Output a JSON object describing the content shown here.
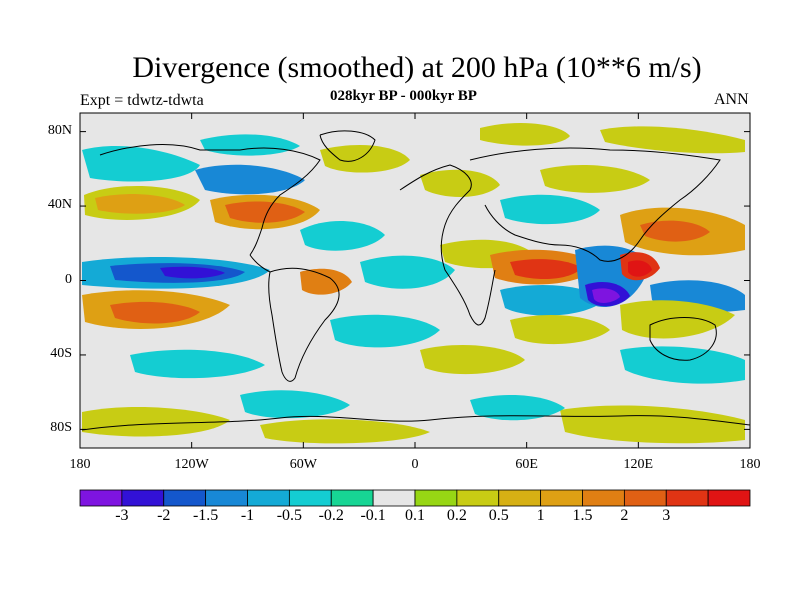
{
  "title": "Divergence (smoothed) at 200 hPa (10**6 m/s)",
  "experiment": "Expt = tdwtz-tdwta",
  "subtitle": "028kyr BP - 000kyr BP",
  "season": "ANN",
  "map": {
    "projection": "cylindrical-equidistant",
    "lon_range": [
      -180,
      180
    ],
    "lat_range": [
      -90,
      90
    ],
    "x_tick_labels": [
      {
        "lon": -180,
        "label": "180"
      },
      {
        "lon": -120,
        "label": "120W"
      },
      {
        "lon": -60,
        "label": "60W"
      },
      {
        "lon": 0,
        "label": "0"
      },
      {
        "lon": 60,
        "label": "60E"
      },
      {
        "lon": 120,
        "label": "120E"
      },
      {
        "lon": 180,
        "label": "180"
      }
    ],
    "y_tick_labels": [
      {
        "lat": 80,
        "label": "80N"
      },
      {
        "lat": 40,
        "label": "40N"
      },
      {
        "lat": 0,
        "label": "0"
      },
      {
        "lat": -40,
        "label": "40S"
      },
      {
        "lat": -80,
        "label": "80S"
      }
    ],
    "background_color": "#e6e6e6"
  },
  "colorbar": {
    "colors": [
      "#7e14e0",
      "#3211d6",
      "#1457cc",
      "#1888d6",
      "#14aad6",
      "#14cdd2",
      "#17d594",
      "#e6e6e6",
      "#97d614",
      "#c8cc14",
      "#d6b014",
      "#dea014",
      "#e07f13",
      "#e06014",
      "#e03414",
      "#e01414"
    ],
    "labels": [
      "-3",
      "-2",
      "-1.5",
      "-1",
      "-0.5",
      "-0.2",
      "-0.1",
      "0.1",
      "0.2",
      "0.5",
      "1",
      "1.5",
      "2",
      "3"
    ]
  },
  "chart_data": {
    "type": "contour-map",
    "title": "Divergence (smoothed) at 200 hPa (10**6 m/s)",
    "variable": "Divergence (smoothed)",
    "level": "200 hPa",
    "units": "10**6 m/s",
    "difference": "028kyr BP - 000kyr BP",
    "season": "ANN",
    "experiment": "tdwtz-tdwta",
    "levels": [
      -3,
      -2,
      -1.5,
      -1,
      -0.5,
      -0.2,
      -0.1,
      0.1,
      0.2,
      0.5,
      1,
      1.5,
      2,
      3
    ],
    "features": [
      {
        "name": "equatorial Pacific convergence band",
        "lon": [
          -170,
          -90
        ],
        "lat": [
          -6,
          8
        ],
        "value": -2
      },
      {
        "name": "western Pacific warm pool minimum",
        "lon": [
          95,
          115
        ],
        "lat": [
          -12,
          -2
        ],
        "value": -3
      },
      {
        "name": "maritime continent maximum",
        "lon": [
          105,
          125
        ],
        "lat": [
          0,
          8
        ],
        "value": 3
      },
      {
        "name": "northwestern Pacific high divergence",
        "lon": [
          110,
          175
        ],
        "lat": [
          10,
          30
        ],
        "value": 1.5
      },
      {
        "name": "Arabian Sea / Indian Ocean high divergence",
        "lon": [
          45,
          80
        ],
        "lat": [
          -5,
          10
        ],
        "value": 1.5
      },
      {
        "name": "central Indian Ocean convergence",
        "lon": [
          60,
          100
        ],
        "lat": [
          -20,
          -8
        ],
        "value": -0.5
      },
      {
        "name": "North America high divergence",
        "lon": [
          -115,
          -75
        ],
        "lat": [
          30,
          45
        ],
        "value": 1
      },
      {
        "name": "South Pacific high divergence",
        "lon": [
          -160,
          -110
        ],
        "lat": [
          -30,
          -15
        ],
        "value": 1.5
      },
      {
        "name": "tropical Atlantic convergence",
        "lon": [
          -50,
          0
        ],
        "lat": [
          -10,
          10
        ],
        "value": -0.5
      },
      {
        "name": "Southern Ocean positive band",
        "lon": [
          -150,
          170
        ],
        "lat": [
          -80,
          -60
        ],
        "value": 0.5
      }
    ]
  }
}
